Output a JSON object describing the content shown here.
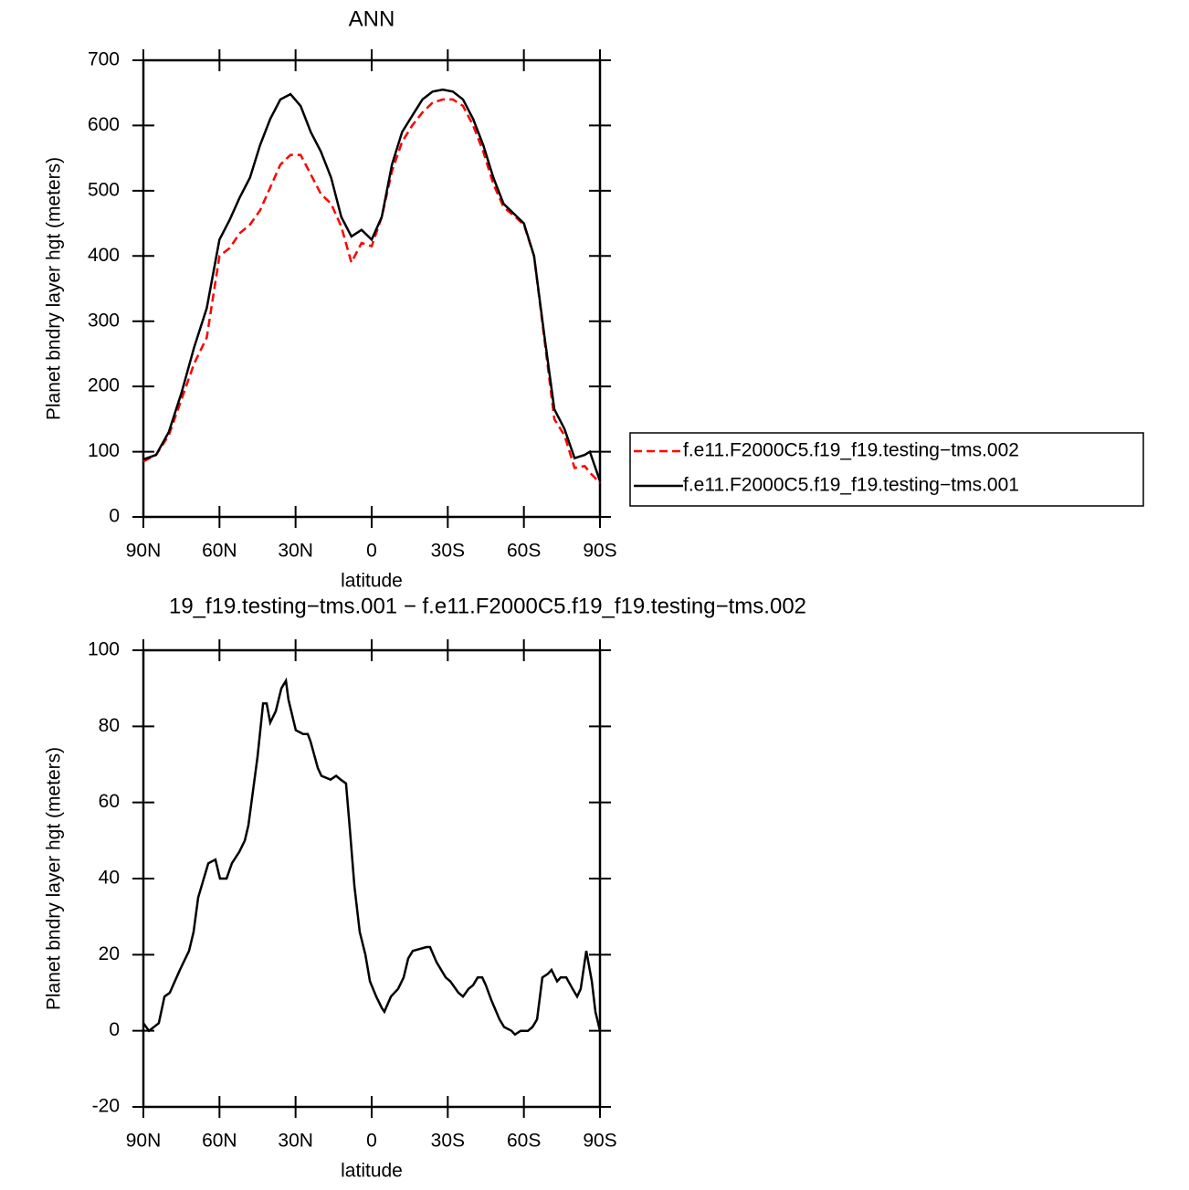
{
  "chart_data": [
    {
      "type": "line",
      "title": "ANN",
      "xlabel": "latitude",
      "ylabel": "Planet bndry layer hgt (meters)",
      "xlim": [
        90,
        -90
      ],
      "xticks": [
        {
          "value": 90,
          "label": "90N"
        },
        {
          "value": 60,
          "label": "60N"
        },
        {
          "value": 30,
          "label": "30N"
        },
        0,
        {
          "value": -30,
          "label": "30S"
        },
        {
          "value": -60,
          "label": "60S"
        },
        {
          "value": -90,
          "label": "90S"
        }
      ],
      "ylim": [
        0,
        700
      ],
      "yticks": [
        0,
        100,
        200,
        300,
        400,
        500,
        600,
        700
      ],
      "x": [
        90,
        85,
        80,
        75,
        70,
        65,
        60,
        56,
        52,
        48,
        44,
        40,
        36,
        32,
        28,
        24,
        20,
        16,
        12,
        8,
        4,
        0,
        -4,
        -8,
        -12,
        -16,
        -20,
        -24,
        -28,
        -32,
        -36,
        -40,
        -44,
        -48,
        -52,
        -56,
        -60,
        -64,
        -68,
        -72,
        -76,
        -80,
        -84,
        -86,
        -90
      ],
      "legend": "right",
      "series": [
        {
          "name": "f.e11.F2000C5.f19_f19.testing−tms.002",
          "color": "#ff0000",
          "linestyle": "dashed",
          "values": [
            85,
            95,
            125,
            180,
            235,
            275,
            400,
            412,
            435,
            448,
            470,
            505,
            540,
            555,
            555,
            525,
            495,
            480,
            445,
            390,
            420,
            415,
            460,
            530,
            575,
            600,
            620,
            635,
            640,
            640,
            630,
            600,
            560,
            510,
            475,
            462,
            448,
            400,
            275,
            150,
            125,
            75,
            78,
            68,
            52
          ]
        },
        {
          "name": "f.e11.F2000C5.f19_f19.testing−tms.001",
          "color": "#000000",
          "linestyle": "solid",
          "values": [
            88,
            95,
            130,
            190,
            260,
            320,
            425,
            455,
            490,
            520,
            570,
            610,
            640,
            648,
            630,
            590,
            560,
            520,
            460,
            430,
            440,
            425,
            460,
            540,
            590,
            615,
            640,
            652,
            655,
            652,
            640,
            610,
            570,
            520,
            480,
            465,
            450,
            400,
            280,
            165,
            135,
            90,
            95,
            100,
            55
          ]
        }
      ]
    },
    {
      "type": "line",
      "title": "19_f19.testing−tms.001 − f.e11.F2000C5.f19_f19.testing−tms.002",
      "xlabel": "latitude",
      "ylabel": "Planet bndry layer hgt (meters)",
      "xlim": [
        90,
        -90
      ],
      "xticks": [
        {
          "value": 90,
          "label": "90N"
        },
        {
          "value": 60,
          "label": "60N"
        },
        {
          "value": 30,
          "label": "30N"
        },
        0,
        {
          "value": -30,
          "label": "30S"
        },
        {
          "value": -60,
          "label": "60S"
        },
        {
          "value": -90,
          "label": "90S"
        }
      ],
      "ylim": [
        -20,
        100
      ],
      "yticks": [
        -20,
        0,
        20,
        40,
        60,
        80,
        100
      ],
      "x": [
        90,
        87.8,
        83.9,
        81.7,
        79.6,
        75.6,
        72,
        70.2,
        68.4,
        64.4,
        61.6,
        59.8,
        57.2,
        55.1,
        52.2,
        50,
        48.6,
        45,
        42.8,
        41.4,
        40,
        37.8,
        35.6,
        33.8,
        32.8,
        29.9,
        27,
        25.2,
        24.1,
        21.2,
        19.8,
        16.2,
        14,
        12.2,
        10.1,
        8.6,
        6.8,
        4.7,
        2.5,
        0.7,
        -1.8,
        -4,
        -5,
        -7.6,
        -10.4,
        -12.6,
        -14.4,
        -16.2,
        -21.6,
        -23,
        -25.6,
        -29.2,
        -31,
        -34.2,
        -36,
        -38.2,
        -40,
        -41.8,
        -43.6,
        -45,
        -47.2,
        -50.4,
        -52.2,
        -55.1,
        -56.5,
        -58.7,
        -61.6,
        -63.4,
        -65.2,
        -67.3,
        -69.5,
        -70.9,
        -73.1,
        -74.5,
        -76.7,
        -79.2,
        -81,
        -82.4,
        -84.6,
        -86.8,
        -88.2,
        -90
      ],
      "series": [
        {
          "color": "#000000",
          "linestyle": "solid",
          "values": [
            2,
            0,
            2,
            9,
            10,
            16,
            21,
            26,
            35,
            44,
            45,
            40,
            40,
            44,
            47,
            50,
            54,
            72,
            86,
            86,
            81,
            84,
            90,
            92,
            87,
            79,
            78,
            78,
            76,
            69,
            67,
            66,
            67,
            66,
            65,
            53,
            38,
            26,
            20,
            13,
            9,
            6,
            5,
            9,
            11,
            14,
            19,
            21,
            22,
            22,
            18,
            14,
            13,
            10,
            9,
            11,
            12,
            14,
            14,
            12,
            8,
            3,
            1,
            0,
            -1,
            0,
            0,
            1,
            3,
            14,
            15,
            16,
            13,
            14,
            14,
            11,
            9,
            11,
            21,
            13,
            5,
            0
          ]
        }
      ]
    }
  ]
}
